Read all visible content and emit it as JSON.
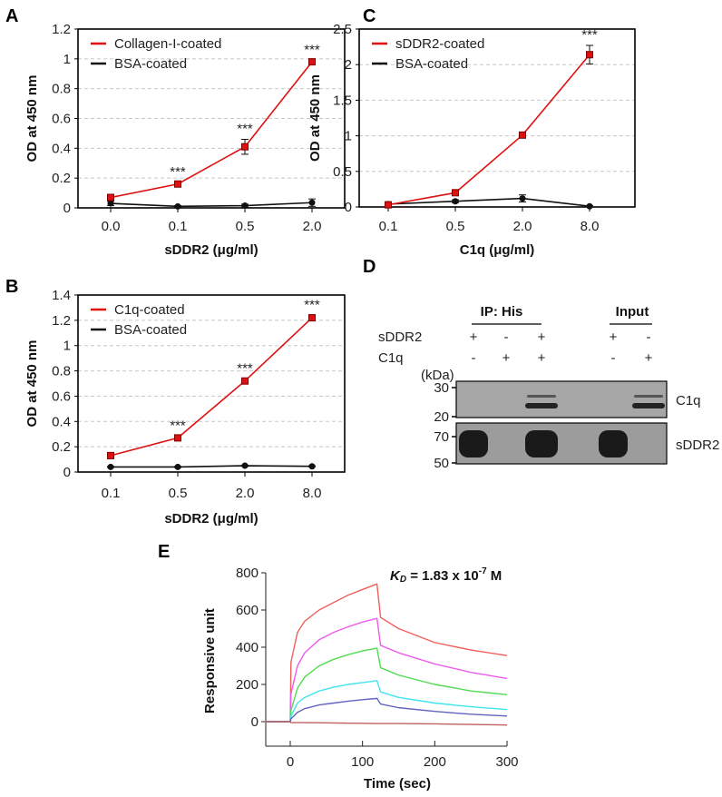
{
  "panel_labels": {
    "A": "A",
    "B": "B",
    "C": "C",
    "D": "D",
    "E": "E"
  },
  "colors": {
    "treated": "#e01010",
    "control": "#111111",
    "grid": "#c8c8c8"
  },
  "chart_data": [
    {
      "id": "A",
      "type": "line",
      "title": "",
      "xlabel": "sDDR2 (μg/ml)",
      "ylabel": "OD at 450 nm",
      "categories": [
        "0.0",
        "0.1",
        "0.5",
        "2.0"
      ],
      "ylim": [
        0,
        1.2
      ],
      "yticks": [
        "0",
        "0.2",
        "0.4",
        "0.6",
        "0.8",
        "1",
        "1.2"
      ],
      "grid": true,
      "legend_position": "top-left",
      "series": [
        {
          "name": "Collagen-I-coated",
          "color": "#e01010",
          "values": [
            0.07,
            0.16,
            0.41,
            0.98
          ],
          "errors": [
            0.02,
            0.01,
            0.05,
            0.01
          ]
        },
        {
          "name": "BSA-coated",
          "color": "#111111",
          "values": [
            0.03,
            0.01,
            0.015,
            0.035
          ],
          "errors": [
            0.015,
            0.005,
            0.01,
            0.025
          ]
        }
      ],
      "significance": [
        "",
        "***",
        "***",
        "***"
      ]
    },
    {
      "id": "B",
      "type": "line",
      "title": "",
      "xlabel": "sDDR2 (μg/ml)",
      "ylabel": "OD at 450 nm",
      "categories": [
        "0.1",
        "0.5",
        "2.0",
        "8.0"
      ],
      "ylim": [
        0,
        1.4
      ],
      "yticks": [
        "0",
        "0.2",
        "0.4",
        "0.6",
        "0.8",
        "1",
        "1.2",
        "1.4"
      ],
      "grid": true,
      "legend_position": "top-left",
      "series": [
        {
          "name": "C1q-coated",
          "color": "#e01010",
          "values": [
            0.13,
            0.27,
            0.72,
            1.22
          ],
          "errors": [
            0.01,
            0.015,
            0.015,
            0.02
          ]
        },
        {
          "name": "BSA-coated",
          "color": "#111111",
          "values": [
            0.04,
            0.04,
            0.05,
            0.045
          ],
          "errors": [
            0.005,
            0.005,
            0.005,
            0.005
          ]
        }
      ],
      "significance": [
        "",
        "***",
        "***",
        "***"
      ]
    },
    {
      "id": "C",
      "type": "line",
      "title": "",
      "xlabel": "C1q (μg/ml)",
      "ylabel": "OD at 450 nm",
      "categories": [
        "0.1",
        "0.5",
        "2.0",
        "8.0"
      ],
      "ylim": [
        0,
        2.5
      ],
      "yticks": [
        "0",
        "0.5",
        "1",
        "1.5",
        "2",
        "2.5"
      ],
      "grid": true,
      "legend_position": "top-left",
      "series": [
        {
          "name": "sDDR2-coated",
          "color": "#e01010",
          "values": [
            0.03,
            0.2,
            1.01,
            2.14
          ],
          "errors": [
            0.02,
            0.03,
            0.03,
            0.13
          ]
        },
        {
          "name": "BSA-coated",
          "color": "#111111",
          "values": [
            0.04,
            0.08,
            0.12,
            0.01
          ],
          "errors": [
            0.03,
            0.02,
            0.05,
            0.01
          ]
        }
      ],
      "significance": [
        "",
        "",
        "",
        "***"
      ]
    },
    {
      "id": "E",
      "type": "line",
      "title": "",
      "xlabel": "Time (sec)",
      "ylabel": "Responsive unit",
      "xlim": [
        -35,
        300
      ],
      "ylim": [
        -130,
        800
      ],
      "xticks": [
        "0",
        "100",
        "200",
        "300"
      ],
      "yticks": [
        "0",
        "200",
        "400",
        "600",
        "800"
      ],
      "grid": false,
      "annotation": {
        "k": "K",
        "sub": "D",
        "mid": " = 1.83 x 10",
        "exp": "-7",
        "unit": " M"
      },
      "x": [
        -35,
        0,
        1,
        10,
        20,
        40,
        60,
        80,
        100,
        120,
        125,
        150,
        200,
        250,
        300
      ],
      "series": [
        {
          "color": "#f0605a",
          "values": [
            0,
            0,
            320,
            480,
            540,
            600,
            640,
            680,
            710,
            740,
            560,
            500,
            425,
            385,
            355
          ]
        },
        {
          "color": "#ee5cee",
          "values": [
            0,
            0,
            150,
            300,
            370,
            440,
            480,
            510,
            535,
            555,
            410,
            370,
            310,
            265,
            232
          ]
        },
        {
          "color": "#4fdc4f",
          "values": [
            0,
            0,
            60,
            180,
            240,
            300,
            335,
            360,
            380,
            395,
            290,
            250,
            200,
            165,
            145
          ]
        },
        {
          "color": "#3fe4f0",
          "values": [
            0,
            0,
            30,
            100,
            130,
            165,
            185,
            200,
            210,
            220,
            160,
            130,
            100,
            80,
            65
          ]
        },
        {
          "color": "#6262c0",
          "values": [
            0,
            0,
            15,
            50,
            70,
            90,
            100,
            110,
            118,
            125,
            95,
            75,
            55,
            40,
            30
          ]
        },
        {
          "color": "#c06060",
          "values": [
            0,
            0,
            -5,
            -5,
            -5,
            -6,
            -7,
            -8,
            -9,
            -10,
            -10,
            -10,
            -12,
            -15,
            -18
          ]
        }
      ]
    }
  ],
  "blot": {
    "groups": [
      "IP: His",
      "Input"
    ],
    "row_labels": [
      "sDDR2",
      "C1q"
    ],
    "lanes": [
      {
        "sDDR2": "+",
        "C1q": "-"
      },
      {
        "sDDR2": "-",
        "C1q": "+"
      },
      {
        "sDDR2": "+",
        "C1q": "+"
      },
      {
        "sDDR2": "+",
        "C1q": "-"
      },
      {
        "sDDR2": "-",
        "C1q": "+"
      }
    ],
    "unit": "(kDa)",
    "markers_top": [
      "30",
      "20"
    ],
    "markers_bottom": [
      "70",
      "50"
    ],
    "panel_names": [
      "C1q",
      "sDDR2"
    ]
  }
}
